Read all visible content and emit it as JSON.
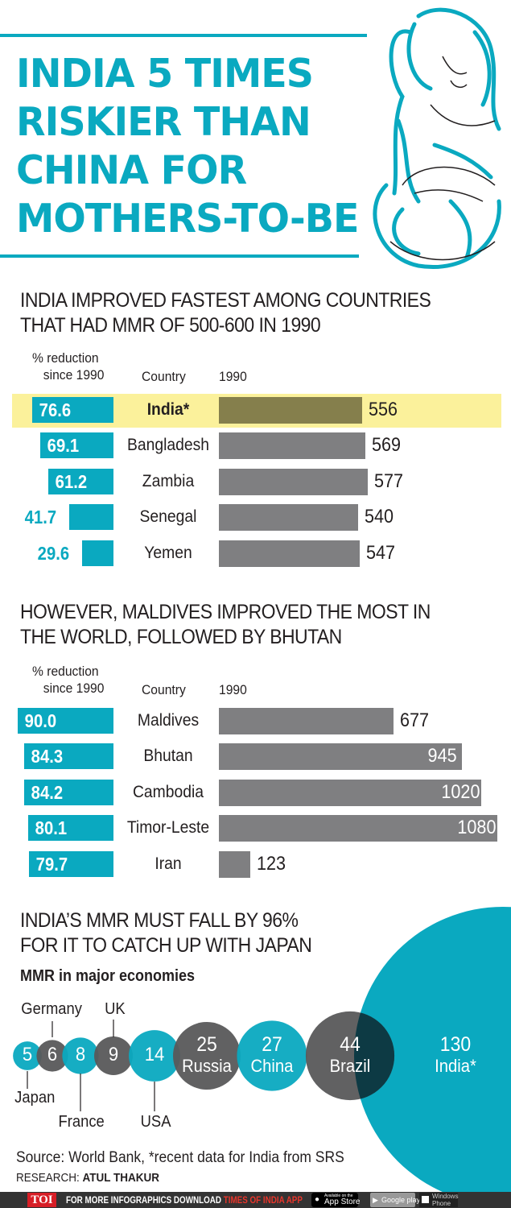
{
  "title": {
    "lines": [
      "INDIA 5 TIMES",
      "RISKIER THAN",
      "CHINA FOR",
      "MOTHERS-TO-BE"
    ]
  },
  "colors": {
    "teal": "#0aa9c0",
    "bar_gray": "#7f7f81",
    "india_bar": "#857f4c",
    "highlight": "#fbf19b",
    "bubble_dark": "#58585a",
    "overlap": "#0d3a44"
  },
  "illustration": "pregnant-woman-line-art",
  "chart_data": [
    {
      "type": "bar",
      "title": "INDIA IMPROVED FASTEST AMONG COUNTRIES THAT HAD MMR OF 500-600 IN 1990",
      "col_pct": "% reduction since 1990",
      "col_pct_lines": [
        "% reduction",
        "since 1990"
      ],
      "col_country": "Country",
      "col_mmr": "1990",
      "categories": [
        "India*",
        "Bangladesh",
        "Zambia",
        "Senegal",
        "Yemen"
      ],
      "pct_reduction": [
        "76.6",
        "69.1",
        "61.2",
        "41.7",
        "29.6"
      ],
      "mmr_1990": [
        556,
        569,
        577,
        540,
        547
      ],
      "highlight": "India*"
    },
    {
      "type": "bar",
      "title": "HOWEVER, MALDIVES IMPROVED THE MOST IN THE WORLD, FOLLOWED BY BHUTAN",
      "col_pct": "% reduction since 1990",
      "col_pct_lines": [
        "% reduction",
        "since 1990"
      ],
      "col_country": "Country",
      "col_mmr": "1990",
      "categories": [
        "Maldives",
        "Bhutan",
        "Cambodia",
        "Timor-Leste",
        "Iran"
      ],
      "pct_reduction": [
        "90.0",
        "84.3",
        "84.2",
        "80.1",
        "79.7"
      ],
      "mmr_1990": [
        677,
        945,
        1020,
        1080,
        123
      ]
    },
    {
      "type": "bubble",
      "title": "INDIA'S MMR MUST FALL BY 96% FOR IT TO CATCH UP WITH JAPAN",
      "subtitle": "MMR in major economies",
      "categories": [
        "Japan",
        "Germany",
        "France",
        "UK",
        "USA",
        "Russia",
        "China",
        "Brazil",
        "India*"
      ],
      "values": [
        5,
        6,
        8,
        9,
        14,
        25,
        27,
        44,
        130
      ],
      "colors": [
        "teal",
        "dark",
        "teal",
        "dark",
        "teal",
        "dark",
        "teal",
        "dark",
        "teal"
      ]
    }
  ],
  "section1": {
    "title_lines": [
      "INDIA IMPROVED FASTEST AMONG COUNTRIES",
      "THAT HAD MMR OF 500-600 IN 1990"
    ]
  },
  "section2": {
    "title_lines": [
      "HOWEVER, MALDIVES IMPROVED THE MOST IN",
      "THE WORLD, FOLLOWED BY BHUTAN"
    ]
  },
  "section3": {
    "title_lines": [
      "INDIA’S MMR MUST FALL BY 96%",
      "FOR IT TO CATCH UP WITH JAPAN"
    ],
    "subtitle": "MMR in major economies"
  },
  "source": "Source: World Bank, *recent data for India from SRS",
  "research_label": "RESEARCH:",
  "research_name": "ATUL THAKUR",
  "footer": {
    "logo": "TOI",
    "text": "FOR MORE  INFOGRAPHICS DOWNLOAD",
    "app": "TIMES OF INDIA  APP",
    "app_store": "App Store",
    "app_store_small": "Available on the",
    "google_play": "Google play",
    "windows": "Windows Phone"
  }
}
